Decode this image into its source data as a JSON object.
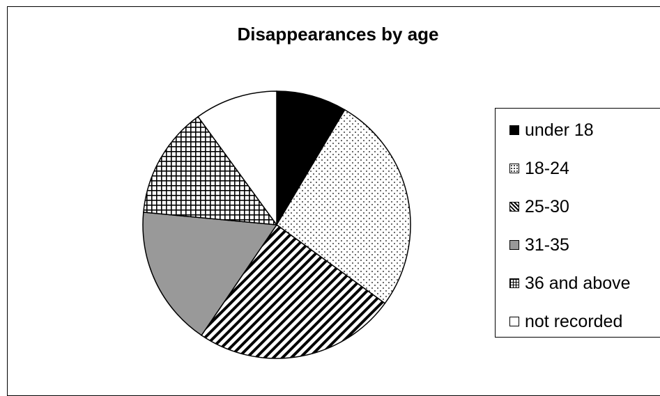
{
  "chart_data": {
    "type": "pie",
    "title": "Disappearances by age",
    "categories": [
      "under 18",
      "18-24",
      "25-30",
      "31-35",
      "36 and above",
      "not recorded"
    ],
    "values": [
      8.5,
      26.5,
      24.5,
      17.0,
      13.5,
      10.0
    ],
    "legend_position": "right",
    "patterns": [
      "solid-black",
      "dotted",
      "diagonal-stripes",
      "solid-gray",
      "grid",
      "white"
    ]
  }
}
